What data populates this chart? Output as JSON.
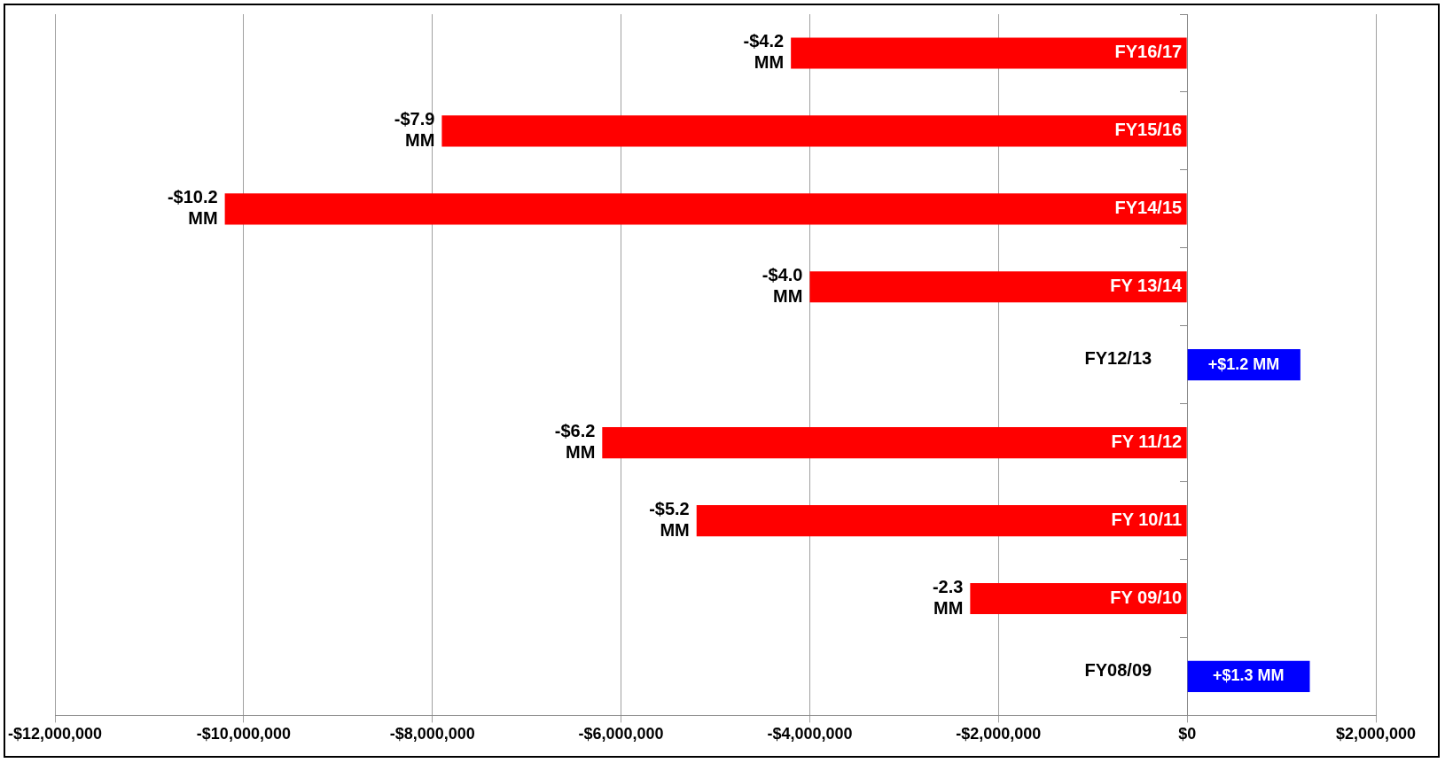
{
  "chart_data": {
    "type": "bar",
    "orientation": "horizontal",
    "categories": [
      "FY16/17",
      "FY15/16",
      "FY14/15",
      "FY 13/14",
      "FY12/13",
      "FY 11/12",
      "FY 10/11",
      "FY 09/10",
      "FY08/09"
    ],
    "values": [
      -4200000,
      -7900000,
      -10200000,
      -4000000,
      1200000,
      -6200000,
      -5200000,
      -2300000,
      1300000
    ],
    "colors": [
      "#ff0000",
      "#ff0000",
      "#ff0000",
      "#ff0000",
      "#0000ff",
      "#ff0000",
      "#ff0000",
      "#ff0000",
      "#0000ff"
    ],
    "annotations": [
      {
        "text": "-$4.2 MM",
        "x": -4200000,
        "y": "FY16/17"
      },
      {
        "text": "-$7.9 MM",
        "x": -7900000,
        "y": "FY15/16"
      },
      {
        "text": "-$10.2 MM",
        "x": -10200000,
        "y": "FY14/15"
      },
      {
        "text": "-$4.0 MM",
        "x": -4000000,
        "y": "FY 13/14"
      },
      {
        "text": "+$1.2 MM",
        "x": 1200000,
        "y": "FY12/13"
      },
      {
        "text": "-$6.2 MM",
        "x": -6200000,
        "y": "FY 11/12"
      },
      {
        "text": "-$5.2 MM",
        "x": -5200000,
        "y": "FY 10/11"
      },
      {
        "text": "-2.3 MM",
        "x": -2300000,
        "y": "FY 09/10"
      },
      {
        "text": "+$1.3 MM",
        "x": 1300000,
        "y": "FY08/09"
      }
    ],
    "xlim": [
      -12000000,
      2000000
    ],
    "xticks": [
      {
        "value": -12000000,
        "label": "-$12,000,000"
      },
      {
        "value": -10000000,
        "label": "-$10,000,000"
      },
      {
        "value": -8000000,
        "label": "-$8,000,000"
      },
      {
        "value": -6000000,
        "label": "-$6,000,000"
      },
      {
        "value": -4000000,
        "label": "-$4,000,000"
      },
      {
        "value": -2000000,
        "label": "-$2,000,000"
      },
      {
        "value": 0,
        "label": "$0"
      },
      {
        "value": 2000000,
        "label": "$2,000,000"
      }
    ],
    "grid": "x"
  }
}
